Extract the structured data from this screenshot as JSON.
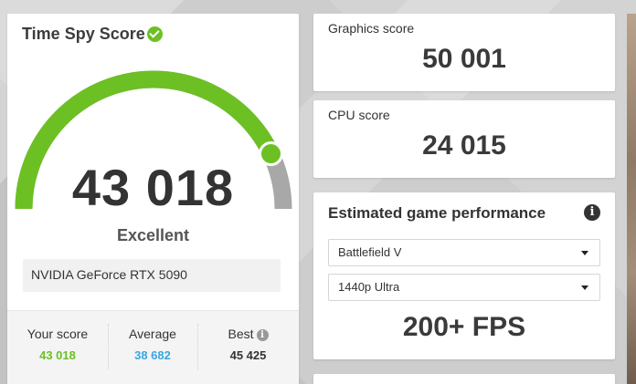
{
  "score_panel": {
    "title": "Time Spy Score",
    "score": "43 018",
    "rating": "Excellent",
    "gauge_fill": 0.86,
    "gpu": "NVIDIA GeForce RTX 5090",
    "stats": {
      "yours_label": "Your score",
      "yours_value": "43 018",
      "average_label": "Average",
      "average_value": "38 682",
      "best_label": "Best",
      "best_value": "45 425"
    }
  },
  "graphics": {
    "label": "Graphics score",
    "value": "50 001"
  },
  "cpu": {
    "label": "CPU score",
    "value": "24 015"
  },
  "game_perf": {
    "title": "Estimated game performance",
    "game": "Battlefield V",
    "preset": "1440p Ultra",
    "fps": "200+ FPS"
  },
  "colors": {
    "accent_green": "#6cc024",
    "average_blue": "#3aa6de",
    "gauge_track": "#a8a8a8"
  }
}
